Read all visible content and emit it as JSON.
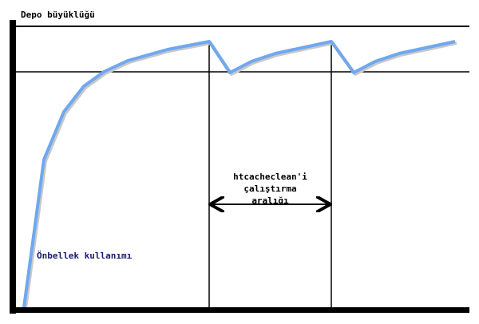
{
  "labels": {
    "y_axis": "Depo büyüklüğü",
    "interval_line1": "htcacheclean'i",
    "interval_line2": "çalıştırma",
    "interval_line3": "aralığı",
    "curve": "Önbellek kullanımı"
  },
  "colors": {
    "curve": "#6fa8f0",
    "axes": "#000000",
    "curve_label": "#1a1a6e"
  }
}
